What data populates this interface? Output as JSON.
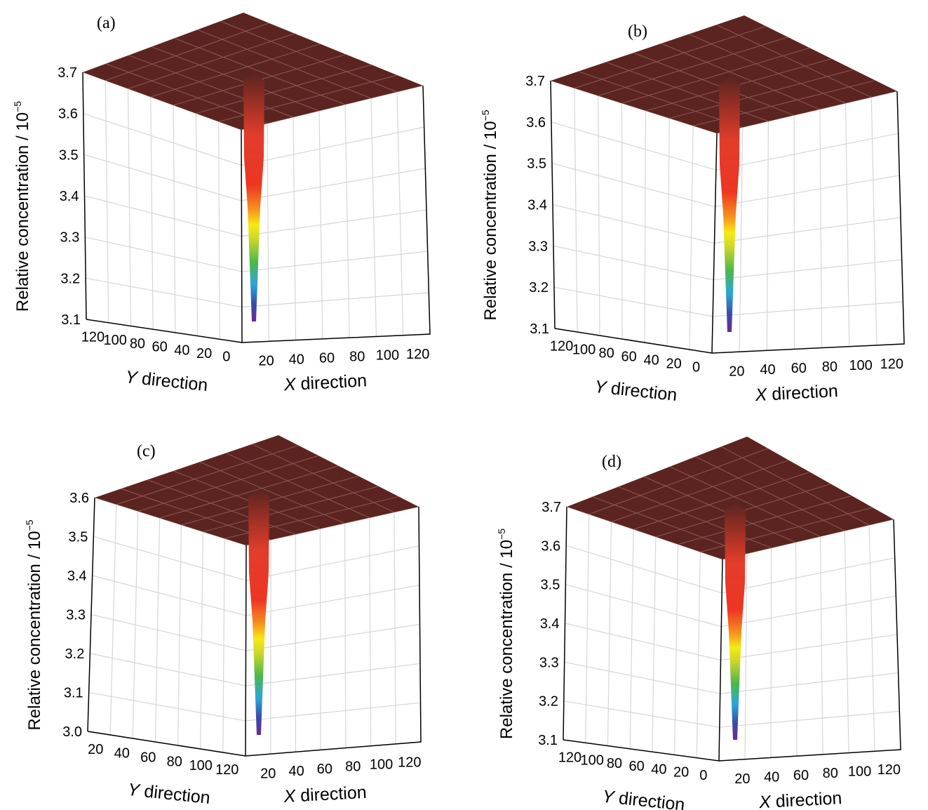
{
  "chart_data": [
    {
      "type": "surface3d",
      "panel_label": "(a)",
      "zlabel": "Relative concentration / 10",
      "zlabel_exponent": "−5",
      "xlabel_var": "X",
      "xlabel_text": " direction",
      "ylabel_var": "Y",
      "ylabel_text": " direction",
      "z_ticks": [
        "3.1",
        "3.2",
        "3.3",
        "3.4",
        "3.5",
        "3.6",
        "3.7"
      ],
      "zlim": [
        3.1,
        3.7
      ],
      "x_ticks": [
        "20",
        "40",
        "60",
        "80",
        "100",
        "120"
      ],
      "y_ticks": [
        "120",
        "100",
        "80",
        "60",
        "40",
        "20",
        "0"
      ],
      "y_order": "descending",
      "xlim": [
        0,
        128
      ],
      "ylim": [
        0,
        128
      ],
      "plateau_value": 3.7,
      "min_value": 3.1,
      "grid": true,
      "colormap": [
        "#6b2a8c",
        "#3a4aa8",
        "#2aa6d8",
        "#4db848",
        "#c9d62b",
        "#f5ea14",
        "#f7941d",
        "#ee3524",
        "#e23d2b",
        "#5c2420"
      ],
      "surface_color": "#5c2420"
    },
    {
      "type": "surface3d",
      "panel_label": "(b)",
      "zlabel": "Relative concentration / 10",
      "zlabel_exponent": "−5",
      "xlabel_var": "X",
      "xlabel_text": " direction",
      "ylabel_var": "Y",
      "ylabel_text": " direction",
      "z_ticks": [
        "3.1",
        "3.2",
        "3.3",
        "3.4",
        "3.5",
        "3.6",
        "3.7"
      ],
      "zlim": [
        3.1,
        3.7
      ],
      "x_ticks": [
        "20",
        "40",
        "60",
        "80",
        "100",
        "120"
      ],
      "y_ticks": [
        "120",
        "100",
        "80",
        "60",
        "40",
        "20",
        "0"
      ],
      "y_order": "descending",
      "xlim": [
        0,
        128
      ],
      "ylim": [
        0,
        128
      ],
      "plateau_value": 3.7,
      "min_value": 3.1,
      "grid": true,
      "colormap": [
        "#6b2a8c",
        "#3a4aa8",
        "#2aa6d8",
        "#4db848",
        "#c9d62b",
        "#f5ea14",
        "#f7941d",
        "#ee3524",
        "#e23d2b",
        "#5c2420"
      ],
      "surface_color": "#5c2420"
    },
    {
      "type": "surface3d",
      "panel_label": "(c)",
      "zlabel": "Relative concentration / 10",
      "zlabel_exponent": "−5",
      "xlabel_var": "X",
      "xlabel_text": " direction",
      "ylabel_var": "Y",
      "ylabel_text": " direction",
      "z_ticks": [
        "3.0",
        "3.1",
        "3.2",
        "3.3",
        "3.4",
        "3.5",
        "3.6"
      ],
      "zlim": [
        3.0,
        3.6
      ],
      "x_ticks": [
        "20",
        "40",
        "60",
        "80",
        "100",
        "120"
      ],
      "y_ticks": [
        "20",
        "40",
        "60",
        "80",
        "100",
        "120"
      ],
      "y_order": "ascending",
      "xlim": [
        0,
        128
      ],
      "ylim": [
        0,
        128
      ],
      "plateau_value": 3.6,
      "min_value": 3.0,
      "grid": true,
      "colormap": [
        "#6b2a8c",
        "#3a4aa8",
        "#2aa6d8",
        "#4db848",
        "#c9d62b",
        "#f5ea14",
        "#f7941d",
        "#ee3524",
        "#e23d2b",
        "#5c2420"
      ],
      "surface_color": "#5c2420"
    },
    {
      "type": "surface3d",
      "panel_label": "(d)",
      "zlabel": "Relative concentration / 10",
      "zlabel_exponent": "−5",
      "xlabel_var": "X",
      "xlabel_text": " direction",
      "ylabel_var": "Y",
      "ylabel_text": " direction",
      "z_ticks": [
        "3.1",
        "3.2",
        "3.3",
        "3.4",
        "3.5",
        "3.6",
        "3.7"
      ],
      "zlim": [
        3.1,
        3.7
      ],
      "x_ticks": [
        "20",
        "40",
        "60",
        "80",
        "100",
        "120"
      ],
      "y_ticks": [
        "120",
        "100",
        "80",
        "60",
        "40",
        "20",
        "0"
      ],
      "y_order": "descending",
      "xlim": [
        0,
        128
      ],
      "ylim": [
        0,
        128
      ],
      "plateau_value": 3.7,
      "min_value": 3.1,
      "grid": true,
      "colormap": [
        "#6b2a8c",
        "#3a4aa8",
        "#2aa6d8",
        "#4db848",
        "#c9d62b",
        "#f5ea14",
        "#f7941d",
        "#ee3524",
        "#e23d2b",
        "#5c2420"
      ],
      "surface_color": "#5c2420"
    }
  ]
}
